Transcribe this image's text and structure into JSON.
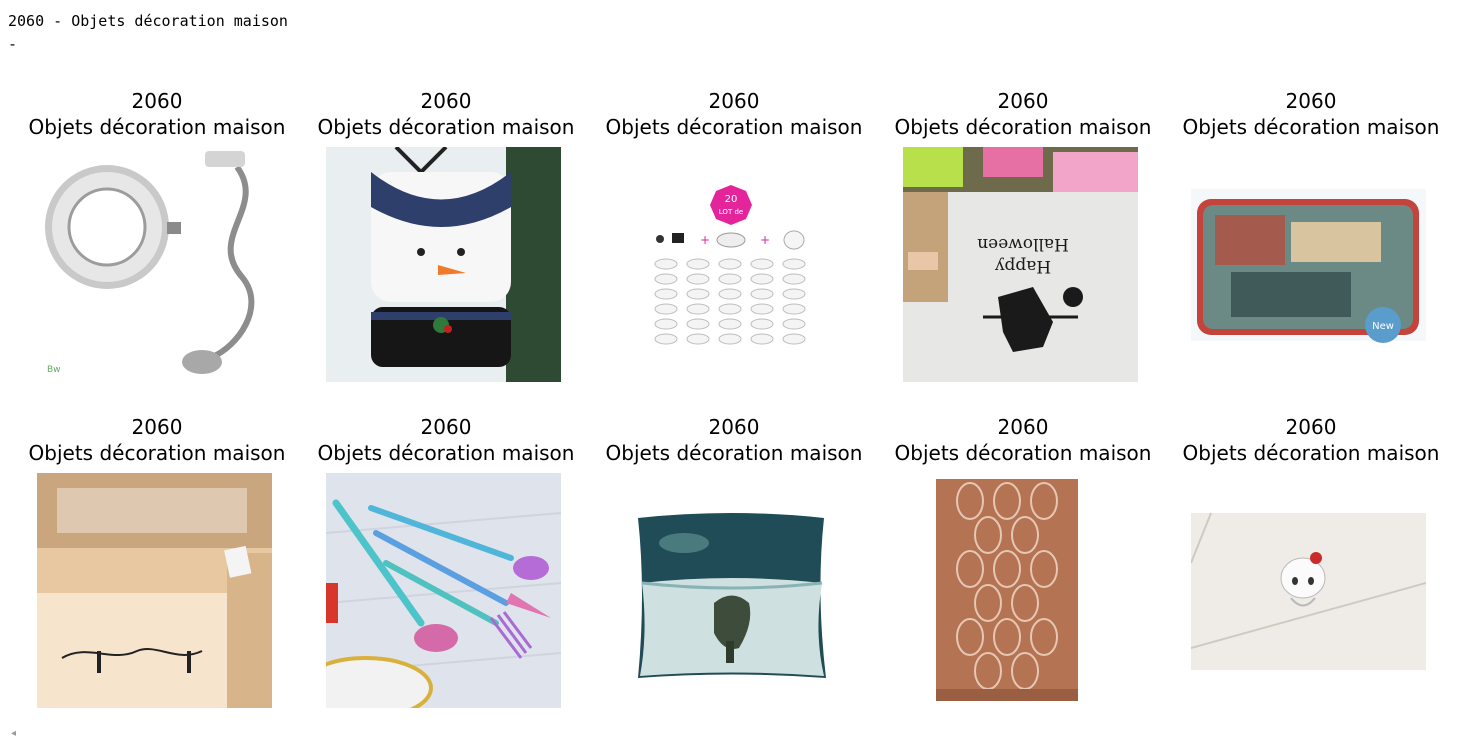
{
  "header": {
    "title_line": "2060 - Objets décoration maison",
    "dash_line": "-"
  },
  "items": [
    {
      "code": "2060",
      "label": "Objets décoration maison",
      "image": "ring-light-clamp"
    },
    {
      "code": "2060",
      "label": "Objets décoration maison",
      "image": "snowman-chair-cover"
    },
    {
      "code": "2060",
      "label": "Objets décoration maison",
      "image": "spotlight-kit"
    },
    {
      "code": "2060",
      "label": "Objets décoration maison",
      "image": "halloween-decal"
    },
    {
      "code": "2060",
      "label": "Objets décoration maison",
      "image": "tin-box"
    },
    {
      "code": "2060",
      "label": "Objets décoration maison",
      "image": "wall-decal-room"
    },
    {
      "code": "2060",
      "label": "Objets décoration maison",
      "image": "rainbow-cutlery"
    },
    {
      "code": "2060",
      "label": "Objets décoration maison",
      "image": "cushion-cover"
    },
    {
      "code": "2060",
      "label": "Objets décoration maison",
      "image": "patterned-towel"
    },
    {
      "code": "2060",
      "label": "Objets décoration maison",
      "image": "cat-figurine"
    }
  ],
  "scroll": {
    "hint_glyph": "◂"
  }
}
